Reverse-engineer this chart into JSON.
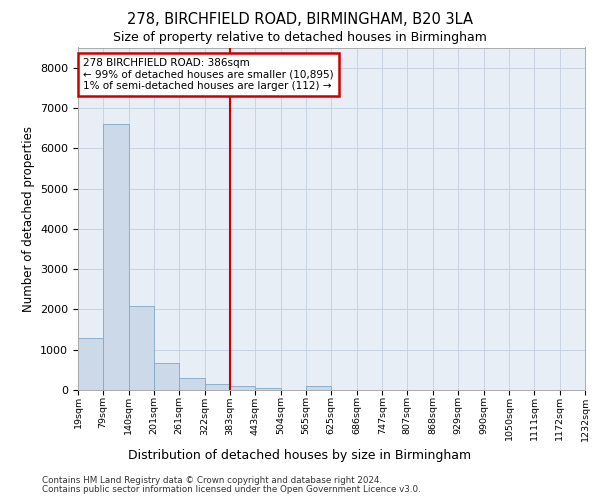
{
  "title1": "278, BIRCHFIELD ROAD, BIRMINGHAM, B20 3LA",
  "title2": "Size of property relative to detached houses in Birmingham",
  "xlabel": "Distribution of detached houses by size in Birmingham",
  "ylabel": "Number of detached properties",
  "footnote1": "Contains HM Land Registry data © Crown copyright and database right 2024.",
  "footnote2": "Contains public sector information licensed under the Open Government Licence v3.0.",
  "annotation_line1": "278 BIRCHFIELD ROAD: 386sqm",
  "annotation_line2": "← 99% of detached houses are smaller (10,895)",
  "annotation_line3": "1% of semi-detached houses are larger (112) →",
  "bin_edges": [
    19,
    79,
    140,
    201,
    261,
    322,
    383,
    443,
    504,
    565,
    625,
    686,
    747,
    807,
    868,
    929,
    990,
    1050,
    1111,
    1172,
    1232
  ],
  "bar_heights": [
    1300,
    6600,
    2080,
    660,
    300,
    160,
    100,
    55,
    0,
    100,
    0,
    0,
    0,
    0,
    0,
    0,
    0,
    0,
    0,
    0
  ],
  "bar_color": "#ccd9e8",
  "bar_edgecolor": "#7fa8c8",
  "vline_color": "#cc0000",
  "vline_x": 383,
  "annotation_box_color": "#cc0000",
  "grid_color": "#c8d4e4",
  "background_color": "#e8eef6",
  "ylim": [
    0,
    8500
  ],
  "yticks": [
    0,
    1000,
    2000,
    3000,
    4000,
    5000,
    6000,
    7000,
    8000
  ]
}
